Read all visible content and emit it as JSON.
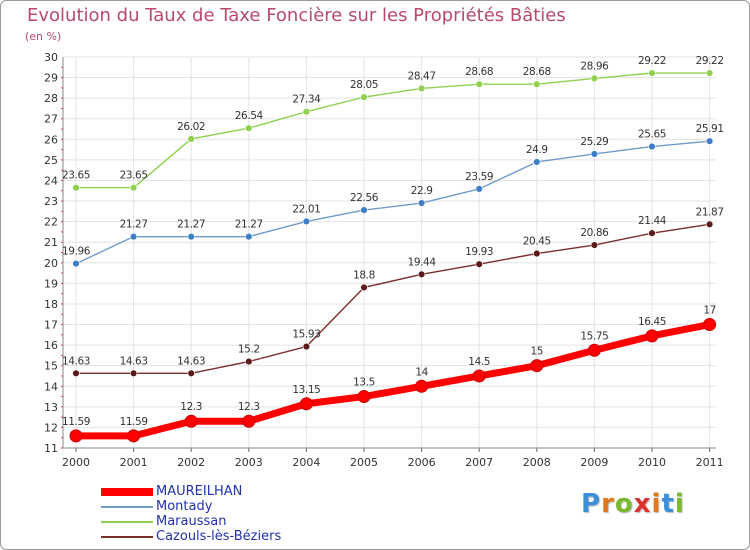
{
  "chart_data": {
    "type": "line",
    "title": "Evolution du Taux de Taxe Foncière sur les Propriétés Bâties",
    "ylabel": "(en %)",
    "xlabel": "",
    "categories": [
      "2000",
      "2001",
      "2002",
      "2003",
      "2004",
      "2005",
      "2006",
      "2007",
      "2008",
      "2009",
      "2010",
      "2011"
    ],
    "ylim": [
      11,
      30
    ],
    "yticks": [
      11,
      12,
      13,
      14,
      15,
      16,
      17,
      18,
      19,
      20,
      21,
      22,
      23,
      24,
      25,
      26,
      27,
      28,
      29,
      30
    ],
    "grid": true,
    "legend_position": "bottom-left",
    "series": [
      {
        "name": "MAUREILHAN",
        "color": "#ff0000",
        "marker": "#ff0000",
        "values": [
          11.59,
          11.59,
          12.3,
          12.3,
          13.15,
          13.5,
          14,
          14.5,
          15,
          15.75,
          16.45,
          17
        ],
        "labels": [
          "11.59",
          "11.59",
          "12.3",
          "12.3",
          "13.15",
          "13.5",
          "14",
          "14.5",
          "15",
          "15.75",
          "16.45",
          "17"
        ],
        "highlight": true
      },
      {
        "name": "Montady",
        "color": "#6f9cc9",
        "marker": "#3d7fc4",
        "values": [
          19.96,
          21.27,
          21.27,
          21.27,
          22.01,
          22.56,
          22.9,
          23.59,
          24.9,
          25.29,
          25.65,
          25.91
        ],
        "labels": [
          "19.96",
          "21.27",
          "21.27",
          "21.27",
          "22.01",
          "22.56",
          "22.9",
          "23.59",
          "24.9",
          "25.29",
          "25.65",
          "25.91"
        ],
        "highlight": false
      },
      {
        "name": "Maraussan",
        "color": "#8fd14f",
        "marker": "#8fd14f",
        "values": [
          23.65,
          23.65,
          26.02,
          26.54,
          27.34,
          28.05,
          28.47,
          28.68,
          28.68,
          28.96,
          29.22,
          29.22
        ],
        "labels": [
          "23.65",
          "23.65",
          "26.02",
          "26.54",
          "27.34",
          "28.05",
          "28.47",
          "28.68",
          "28.68",
          "28.96",
          "29.22",
          "29.22"
        ],
        "highlight": false
      },
      {
        "name": "Cazouls-lès-Béziers",
        "color": "#7a2e2e",
        "marker": "#5c1a1a",
        "values": [
          14.63,
          14.63,
          14.63,
          15.2,
          15.93,
          18.8,
          19.44,
          19.93,
          20.45,
          20.86,
          21.44,
          21.87
        ],
        "labels": [
          "14.63",
          "14.63",
          "14.63",
          "15.2",
          "15.93",
          "18.8",
          "19.44",
          "19.93",
          "20.45",
          "20.86",
          "21.44",
          "21.87"
        ],
        "highlight": false
      }
    ]
  },
  "logo": {
    "letters": [
      "P",
      "r",
      "o",
      "x",
      "i",
      "t",
      "i"
    ],
    "colors": [
      "#3a8fd8",
      "#e07820",
      "#7ab82e",
      "#d93030",
      "#e07820",
      "#3a8fd8",
      "#7ab82e"
    ]
  }
}
